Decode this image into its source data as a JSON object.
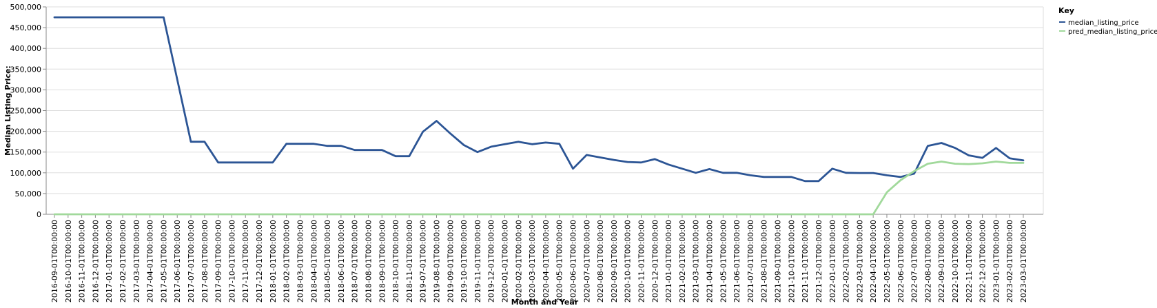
{
  "chart_data": {
    "type": "line",
    "xlabel": "Month and Year",
    "ylabel": "Median Listing Price:",
    "ylim": [
      0,
      500000
    ],
    "y_ticks": [
      "0",
      "50,000",
      "100,000",
      "150,000",
      "200,000",
      "250,000",
      "300,000",
      "350,000",
      "400,000",
      "450,000",
      "500,000"
    ],
    "grid": "horizontal",
    "legend": {
      "title": "Key",
      "position": "top-right"
    },
    "x": [
      "2016-09-01T00:00:00",
      "2016-10-01T00:00:00",
      "2016-11-01T00:00:00",
      "2016-12-01T00:00:00",
      "2017-01-01T00:00:00",
      "2017-02-01T00:00:00",
      "2017-03-01T00:00:00",
      "2017-04-01T00:00:00",
      "2017-05-01T00:00:00",
      "2017-06-01T00:00:00",
      "2017-07-01T00:00:00",
      "2017-08-01T00:00:00",
      "2017-09-01T00:00:00",
      "2017-10-01T00:00:00",
      "2017-11-01T00:00:00",
      "2017-12-01T00:00:00",
      "2018-01-01T00:00:00",
      "2018-02-01T00:00:00",
      "2018-03-01T00:00:00",
      "2018-04-01T00:00:00",
      "2018-05-01T00:00:00",
      "2018-06-01T00:00:00",
      "2018-07-01T00:00:00",
      "2018-08-01T00:00:00",
      "2018-09-01T00:00:00",
      "2018-10-01T00:00:00",
      "2018-11-01T00:00:00",
      "2019-07-01T00:00:00",
      "2019-08-01T00:00:00",
      "2019-09-01T00:00:00",
      "2019-10-01T00:00:00",
      "2019-11-01T00:00:00",
      "2019-12-01T00:00:00",
      "2020-01-01T00:00:00",
      "2020-02-01T00:00:00",
      "2020-03-01T00:00:00",
      "2020-04-01T00:00:00",
      "2020-05-01T00:00:00",
      "2020-06-01T00:00:00",
      "2020-07-01T00:00:00",
      "2020-08-01T00:00:00",
      "2020-09-01T00:00:00",
      "2020-10-01T00:00:00",
      "2020-11-01T00:00:00",
      "2020-12-01T00:00:00",
      "2021-01-01T00:00:00",
      "2021-02-01T00:00:00",
      "2021-03-01T00:00:00",
      "2021-04-01T00:00:00",
      "2021-05-01T00:00:00",
      "2021-06-01T00:00:00",
      "2021-07-01T00:00:00",
      "2021-08-01T00:00:00",
      "2021-09-01T00:00:00",
      "2021-10-01T00:00:00",
      "2021-11-01T00:00:00",
      "2021-12-01T00:00:00",
      "2022-01-01T00:00:00",
      "2022-02-01T00:00:00",
      "2022-03-01T00:00:00",
      "2022-04-01T00:00:00",
      "2022-05-01T00:00:00",
      "2022-06-01T00:00:00",
      "2022-07-01T00:00:00",
      "2022-08-01T00:00:00",
      "2022-09-01T00:00:00",
      "2022-10-01T00:00:00",
      "2022-11-01T00:00:00",
      "2022-12-01T00:00:00",
      "2023-01-01T00:00:00",
      "2023-02-01T00:00:00",
      "2023-03-01T00:00:00"
    ],
    "series": [
      {
        "name": "median_listing_price",
        "color": "#2c5595",
        "values": [
          475000,
          475000,
          475000,
          475000,
          475000,
          475000,
          475000,
          475000,
          475000,
          325000,
          175000,
          175000,
          125000,
          125000,
          125000,
          125000,
          125000,
          170000,
          170000,
          170000,
          165000,
          165000,
          155000,
          155000,
          155000,
          140000,
          140000,
          199000,
          225000,
          195000,
          167000,
          150000,
          163000,
          169000,
          175000,
          169000,
          173000,
          170000,
          110000,
          143000,
          137000,
          131000,
          126000,
          125000,
          133000,
          120000,
          110000,
          100000,
          109000,
          100000,
          100000,
          94000,
          90000,
          90000,
          90000,
          80000,
          80000,
          110000,
          100000,
          99500,
          99500,
          94000,
          90000,
          98000,
          165000,
          172000,
          160000,
          142000,
          136000,
          160000,
          135000,
          130000
        ]
      },
      {
        "name": "pred_median_listing_price",
        "color": "#a1d99b",
        "values": [
          0,
          0,
          0,
          0,
          0,
          0,
          0,
          0,
          0,
          0,
          0,
          0,
          0,
          0,
          0,
          0,
          0,
          0,
          0,
          0,
          0,
          0,
          0,
          0,
          0,
          0,
          0,
          0,
          0,
          0,
          0,
          0,
          0,
          0,
          0,
          0,
          0,
          0,
          0,
          0,
          0,
          0,
          0,
          0,
          0,
          0,
          0,
          0,
          0,
          0,
          0,
          0,
          0,
          0,
          0,
          0,
          0,
          0,
          0,
          0,
          0,
          53000,
          82000,
          104000,
          122000,
          127000,
          122000,
          121000,
          123000,
          127000,
          124000,
          124000
        ]
      }
    ]
  }
}
